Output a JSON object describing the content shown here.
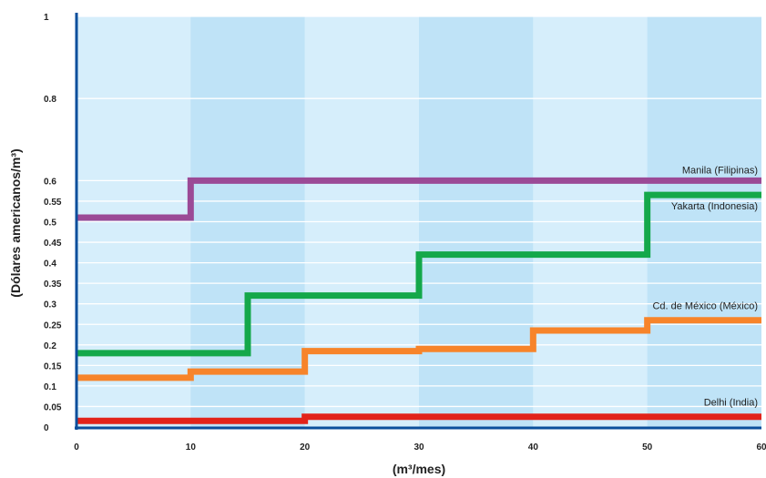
{
  "chart_data": {
    "type": "line",
    "step": true,
    "title": "",
    "xlabel": "(m³/mes)",
    "ylabel": "(Dólares americanos/m³)",
    "xlim": [
      0,
      60
    ],
    "ylim": [
      0,
      1
    ],
    "x_ticks": [
      "0",
      "10",
      "20",
      "30",
      "40",
      "50",
      "60"
    ],
    "y_ticks": [
      "0",
      "0.05",
      "0.1",
      "0.15",
      "0.2",
      "0.25",
      "0.3",
      "0.35",
      "0.4",
      "0.45",
      "0.5",
      "0.55",
      "0.6",
      "0.8",
      "1"
    ],
    "grid": true,
    "background_bands": [
      "#d6eefb",
      "#bfe3f7"
    ],
    "series": [
      {
        "name": "Manila (Filipinas)",
        "color": "#9b4a96",
        "x": [
          0,
          10,
          60
        ],
        "y": [
          0.51,
          0.6,
          0.6
        ]
      },
      {
        "name": "Yakarta (Indonesia)",
        "color": "#14a84a",
        "x": [
          0,
          15,
          30,
          50,
          60
        ],
        "y": [
          0.18,
          0.32,
          0.42,
          0.565,
          0.565
        ]
      },
      {
        "name": "Cd. de México (México)",
        "color": "#f7842a",
        "x": [
          0,
          10,
          20,
          30,
          40,
          50,
          60
        ],
        "y": [
          0.12,
          0.135,
          0.185,
          0.19,
          0.235,
          0.26,
          0.26
        ]
      },
      {
        "name": "Delhi (India)",
        "color": "#e2231a",
        "x": [
          0,
          20,
          60
        ],
        "y": [
          0.015,
          0.025,
          0.025
        ]
      }
    ]
  }
}
